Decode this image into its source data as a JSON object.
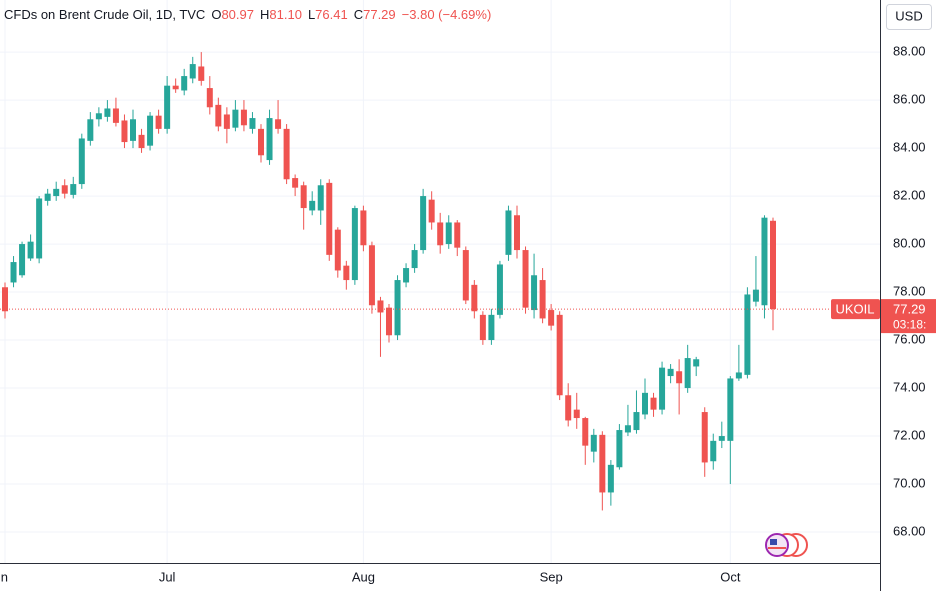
{
  "chart_data": {
    "type": "candlestick",
    "legend": {
      "symbol": "CFDs on Brent Crude Oil, 1D, TVC",
      "ohlc": [
        [
          "O",
          "80.97"
        ],
        [
          "H",
          "81.10"
        ],
        [
          "L",
          "76.41"
        ],
        [
          "C",
          "77.29"
        ]
      ],
      "change": "−3.80 (−4.69%)"
    },
    "currency": "USD",
    "symbol_tag": "UKOIL",
    "last_price": 77.29,
    "countdown": "03:18:",
    "up_color": "#26a69a",
    "down_color": "#ef5350",
    "grid": true,
    "categories": [
      "Jun",
      null,
      null,
      null,
      null,
      null,
      null,
      null,
      null,
      null,
      null,
      null,
      null,
      null,
      null,
      null,
      null,
      null,
      null,
      "Jul",
      null,
      null,
      null,
      null,
      null,
      null,
      null,
      null,
      null,
      null,
      null,
      null,
      null,
      null,
      null,
      null,
      null,
      null,
      null,
      null,
      null,
      null,
      "Aug",
      null,
      null,
      null,
      null,
      null,
      null,
      null,
      null,
      null,
      null,
      null,
      null,
      null,
      null,
      null,
      null,
      null,
      null,
      null,
      null,
      null,
      "Sep",
      null,
      null,
      null,
      null,
      null,
      null,
      null,
      null,
      null,
      null,
      null,
      null,
      null,
      null,
      null,
      null,
      null,
      null,
      null,
      null,
      "Oct",
      null,
      null,
      null,
      null,
      null
    ],
    "open": [
      78.2,
      78.4,
      78.7,
      79.4,
      79.4,
      81.8,
      82.0,
      82.45,
      82.05,
      82.5,
      84.3,
      85.2,
      85.3,
      85.65,
      85.15,
      84.3,
      84.55,
      84.1,
      85.35,
      84.8,
      86.6,
      86.4,
      86.9,
      87.4,
      86.5,
      85.8,
      85.4,
      84.85,
      85.6,
      84.8,
      84.8,
      83.5,
      85.2,
      84.8,
      82.75,
      82.45,
      81.4,
      81.4,
      82.55,
      80.6,
      79.1,
      78.5,
      81.4,
      79.95,
      77.65,
      77.35,
      76.2,
      78.4,
      79.0,
      79.75,
      81.85,
      80.9,
      80.0,
      80.9,
      79.75,
      78.3,
      77.05,
      76.0,
      77.05,
      79.55,
      81.2,
      79.75,
      77.25,
      78.5,
      77.25,
      77.05,
      73.7,
      73.1,
      72.75,
      71.35,
      72.05,
      69.65,
      70.7,
      72.15,
      72.25,
      72.9,
      73.6,
      73.1,
      74.5,
      74.7,
      74.0,
      74.9,
      73.0,
      70.95,
      71.8,
      71.8,
      74.4,
      74.55,
      77.6,
      77.45,
      80.97
    ],
    "high": [
      78.4,
      79.5,
      80.1,
      80.4,
      82.0,
      82.3,
      82.6,
      82.7,
      82.8,
      84.6,
      85.5,
      85.7,
      86.0,
      86.1,
      85.4,
      85.6,
      84.8,
      85.5,
      85.6,
      87.0,
      86.9,
      87.3,
      87.8,
      88.0,
      87.0,
      86.1,
      85.7,
      86.0,
      86.0,
      85.5,
      85.0,
      85.6,
      86.0,
      85.0,
      82.9,
      82.6,
      82.2,
      82.7,
      82.7,
      80.7,
      79.3,
      81.6,
      81.6,
      80.1,
      77.8,
      77.5,
      78.7,
      79.2,
      80.0,
      82.3,
      82.2,
      81.3,
      81.2,
      81.0,
      79.9,
      78.5,
      77.2,
      77.3,
      79.3,
      81.6,
      81.6,
      79.9,
      79.6,
      79.0,
      77.5,
      77.2,
      74.2,
      73.8,
      72.8,
      72.3,
      72.2,
      71.0,
      72.5,
      73.3,
      73.9,
      74.4,
      73.8,
      75.1,
      75.0,
      75.2,
      75.8,
      75.3,
      73.2,
      72.1,
      72.6,
      74.5,
      75.8,
      78.2,
      79.5,
      81.2,
      81.1
    ],
    "low": [
      76.9,
      78.2,
      78.6,
      79.3,
      79.2,
      81.6,
      81.8,
      81.9,
      81.9,
      82.3,
      84.1,
      84.9,
      85.1,
      84.9,
      84.0,
      84.0,
      83.8,
      83.9,
      84.6,
      84.6,
      86.3,
      86.2,
      86.7,
      86.6,
      85.4,
      84.7,
      84.2,
      84.7,
      84.7,
      84.6,
      83.4,
      83.3,
      84.6,
      82.5,
      82.0,
      80.6,
      81.2,
      80.8,
      79.3,
      78.6,
      78.1,
      78.3,
      79.7,
      77.1,
      75.3,
      75.9,
      76.0,
      78.2,
      78.8,
      79.6,
      80.6,
      79.6,
      79.8,
      79.5,
      77.5,
      76.9,
      75.8,
      75.8,
      76.9,
      79.3,
      79.4,
      77.1,
      76.9,
      76.7,
      76.4,
      73.5,
      72.4,
      72.3,
      70.8,
      70.9,
      68.9,
      69.1,
      70.6,
      72.0,
      72.1,
      72.7,
      72.8,
      72.9,
      74.2,
      72.9,
      73.8,
      74.5,
      70.3,
      70.6,
      71.5,
      70.0,
      74.3,
      74.4,
      77.4,
      76.9,
      76.41
    ],
    "close": [
      77.2,
      79.25,
      80.0,
      80.1,
      81.9,
      82.1,
      82.3,
      82.1,
      82.5,
      84.4,
      85.2,
      85.45,
      85.65,
      85.05,
      84.25,
      85.2,
      84.0,
      85.35,
      84.8,
      86.6,
      86.45,
      87.0,
      87.5,
      86.8,
      85.7,
      84.9,
      84.8,
      85.6,
      84.95,
      85.25,
      83.7,
      85.25,
      84.8,
      82.7,
      82.35,
      81.5,
      81.8,
      82.45,
      79.55,
      78.9,
      78.5,
      81.5,
      79.95,
      77.45,
      77.15,
      76.2,
      78.5,
      79.0,
      79.75,
      82.0,
      80.9,
      79.95,
      80.9,
      79.85,
      77.65,
      77.2,
      76.0,
      77.05,
      79.15,
      81.4,
      79.75,
      77.35,
      78.7,
      76.9,
      76.6,
      73.7,
      72.65,
      72.75,
      71.6,
      72.05,
      69.65,
      70.8,
      72.25,
      72.45,
      73.0,
      73.8,
      73.1,
      74.85,
      74.8,
      74.2,
      75.25,
      75.2,
      70.9,
      71.8,
      72.0,
      74.4,
      74.65,
      77.9,
      78.1,
      81.1,
      77.29
    ],
    "ylim": [
      66.71,
      90.17
    ],
    "yticks": [
      {
        "value": 68,
        "label": "68.00"
      },
      {
        "value": 70,
        "label": "70.00"
      },
      {
        "value": 72,
        "label": "72.00"
      },
      {
        "value": 74,
        "label": "74.00"
      },
      {
        "value": 76,
        "label": "76.00"
      },
      {
        "value": 78,
        "label": "78.00"
      },
      {
        "value": 80,
        "label": "80.00"
      },
      {
        "value": 82,
        "label": "82.00"
      },
      {
        "value": 84,
        "label": "84.00"
      },
      {
        "value": 86,
        "label": "86.00"
      },
      {
        "value": 88,
        "label": "88.00"
      }
    ]
  }
}
